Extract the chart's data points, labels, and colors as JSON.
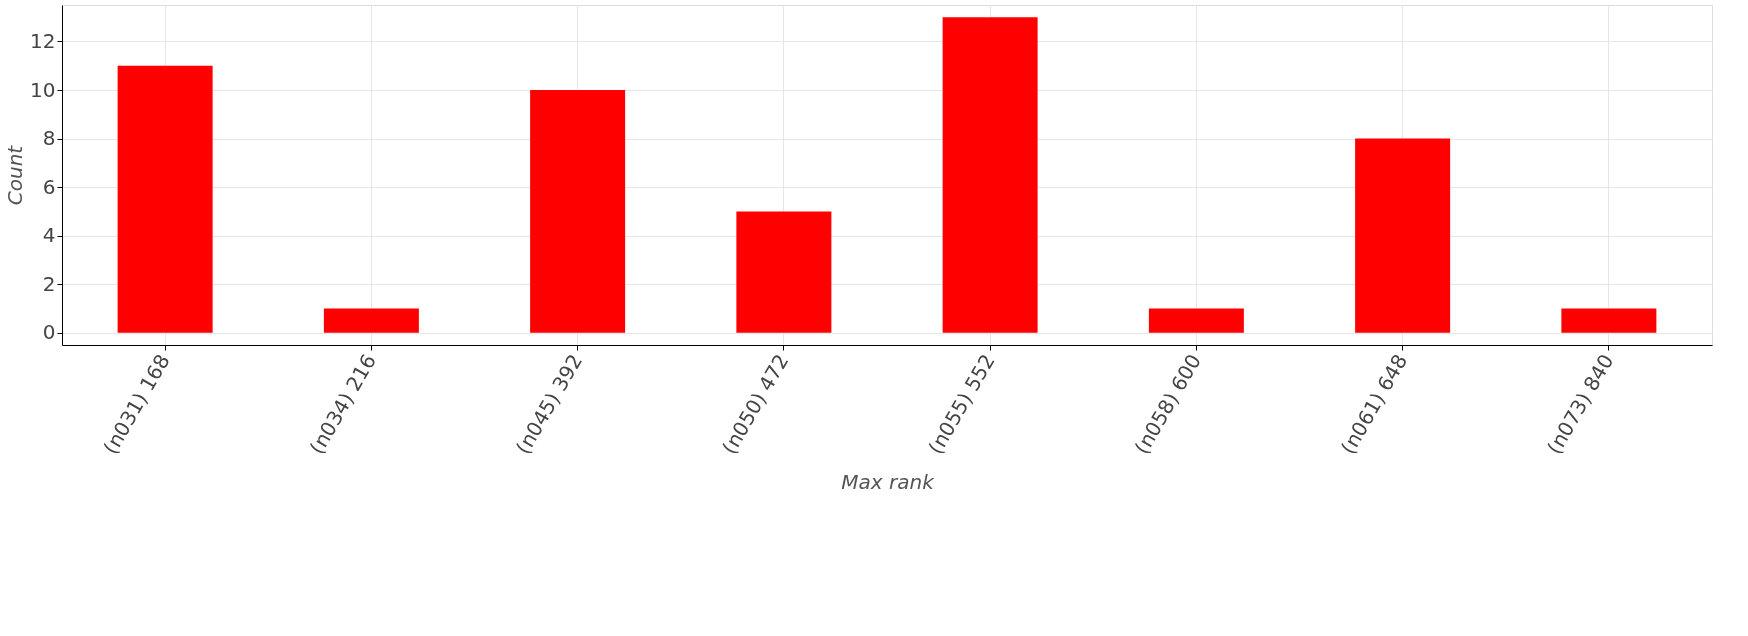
{
  "chart_data": {
    "type": "bar",
    "xlabel": "Max rank",
    "ylabel": "Count",
    "categories": [
      "(n031)   168",
      "(n034)   216",
      "(n045)   392",
      "(n050)   472",
      "(n055)   552",
      "(n058)   600",
      "(n061)   648",
      "(n073)   840"
    ],
    "values": [
      11,
      1,
      10,
      5,
      13,
      1,
      8,
      1
    ],
    "color": "#ff0000",
    "ylim": [
      -0.5,
      13.5
    ],
    "yticks": [
      0,
      2,
      4,
      6,
      8,
      10,
      12
    ],
    "grid": true
  }
}
